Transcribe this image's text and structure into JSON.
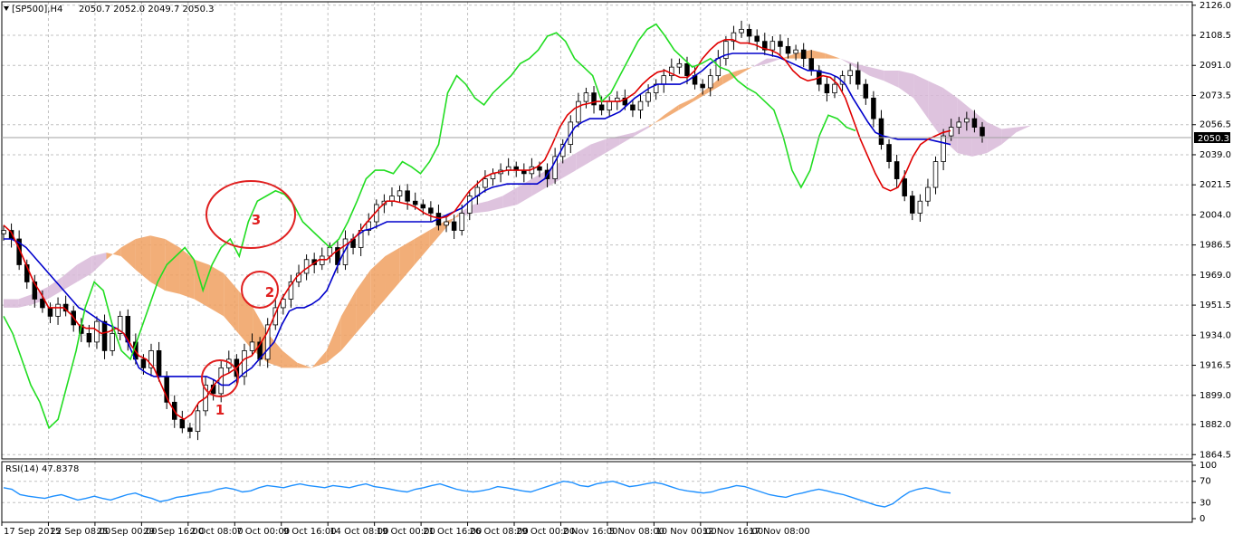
{
  "header": {
    "symbol": "[SP500],H4",
    "ohlc": "2050.7 2052.0 2049.7 2050.3"
  },
  "rsi": {
    "label": "RSI(14) 47.8378",
    "ticks": [
      100,
      70,
      30,
      0
    ],
    "color": "#1e90ff"
  },
  "current_price_label": "2050.3",
  "annotations": [
    {
      "text": "1",
      "color": "#e02020"
    },
    {
      "text": "2",
      "color": "#e02020"
    },
    {
      "text": "3",
      "color": "#e02020"
    }
  ],
  "colors": {
    "tenkan": "#e00000",
    "kijun": "#0000cc",
    "chikou": "#22dd22",
    "cloud_bull": "#f0a060",
    "cloud_bear": "#d8b8d8",
    "candle": "#000000"
  },
  "chart_data": {
    "type": "line",
    "instrument": "SP500",
    "timeframe": "H4",
    "y_ticks": [
      2126.0,
      2108.5,
      2091.0,
      2073.5,
      2056.5,
      2039.0,
      2021.5,
      2004.0,
      1986.5,
      1969.0,
      1951.5,
      1934.0,
      1916.5,
      1899.0,
      1882.0,
      1864.5
    ],
    "ylim": [
      1862,
      2128
    ],
    "x_ticks": [
      "17 Sep 2015",
      "22 Sep 08:00",
      "25 Sep 00:00",
      "29 Sep 16:00",
      "2 Oct 08:00",
      "7 Oct 00:00",
      "9 Oct 16:00",
      "14 Oct 08:00",
      "19 Oct 00:00",
      "21 Oct 16:00",
      "26 Oct 08:00",
      "29 Oct 00:00",
      "2 Nov 16:00",
      "5 Nov 08:00",
      "10 Nov 00:00",
      "12 Nov 16:00",
      "17 Nov 08:00"
    ],
    "grid": true,
    "close": [
      1995,
      1990,
      1975,
      1965,
      1955,
      1950,
      1945,
      1952,
      1948,
      1940,
      1935,
      1930,
      1942,
      1925,
      1935,
      1945,
      1930,
      1920,
      1915,
      1925,
      1910,
      1895,
      1885,
      1880,
      1878,
      1890,
      1905,
      1900,
      1915,
      1920,
      1910,
      1925,
      1930,
      1920,
      1940,
      1950,
      1955,
      1965,
      1970,
      1978,
      1975,
      1980,
      1985,
      1975,
      1990,
      1985,
      1995,
      2000,
      2010,
      2012,
      2015,
      2018,
      2012,
      2010,
      2008,
      2005,
      1998,
      2000,
      1995,
      2005,
      2015,
      2020,
      2025,
      2028,
      2030,
      2032,
      2030,
      2028,
      2032,
      2030,
      2025,
      2038,
      2045,
      2058,
      2070,
      2075,
      2068,
      2065,
      2070,
      2072,
      2068,
      2065,
      2070,
      2075,
      2080,
      2085,
      2090,
      2092,
      2085,
      2080,
      2078,
      2085,
      2095,
      2105,
      2110,
      2112,
      2108,
      2105,
      2100,
      2105,
      2102,
      2098,
      2100,
      2095,
      2088,
      2080,
      2075,
      2080,
      2085,
      2088,
      2080,
      2072,
      2060,
      2045,
      2035,
      2025,
      2015,
      2005,
      2012,
      2020,
      2035,
      2050,
      2055,
      2058,
      2060,
      2055,
      2050
    ],
    "series": [
      {
        "name": "",
        "color": "#e00000",
        "values": [
          1998,
          1994,
          1985,
          1975,
          1965,
          1958,
          1950,
          1950,
          1950,
          1946,
          1940,
          1938,
          1938,
          1935,
          1936,
          1938,
          1935,
          1928,
          1922,
          1920,
          1915,
          1905,
          1895,
          1888,
          1885,
          1888,
          1895,
          1898,
          1905,
          1910,
          1912,
          1915,
          1920,
          1922,
          1928,
          1935,
          1945,
          1955,
          1962,
          1968,
          1972,
          1975,
          1978,
          1978,
          1982,
          1985,
          1988,
          1992,
          1998,
          2003,
          2008,
          2012,
          2012,
          2011,
          2010,
          2008,
          2005,
          2003,
          2002,
          2003,
          2006,
          2012,
          2018,
          2022,
          2026,
          2028,
          2029,
          2030,
          2030,
          2030,
          2030,
          2032,
          2036,
          2045,
          2055,
          2062,
          2066,
          2068,
          2069,
          2070,
          2070,
          2070,
          2070,
          2072,
          2075,
          2080,
          2084,
          2087,
          2088,
          2086,
          2084,
          2084,
          2088,
          2095,
          2100,
          2104,
          2106,
          2106,
          2104,
          2104,
          2103,
          2101,
          2100,
          2098,
          2094,
          2088,
          2084,
          2082,
          2083,
          2085,
          2084,
          2080,
          2072,
          2060,
          2048,
          2038,
          2028,
          2020,
          2018,
          2020,
          2028,
          2038,
          2045,
          2048,
          2050,
          2052,
          2053
        ]
      },
      {
        "name": "",
        "color": "#0000cc",
        "values": [
          1990,
          1990,
          1988,
          1985,
          1980,
          1975,
          1970,
          1965,
          1960,
          1955,
          1950,
          1948,
          1945,
          1942,
          1940,
          1938,
          1935,
          1925,
          1915,
          1912,
          1910,
          1910,
          1910,
          1910,
          1910,
          1910,
          1910,
          1910,
          1908,
          1905,
          1905,
          1908,
          1912,
          1915,
          1920,
          1925,
          1930,
          1940,
          1948,
          1950,
          1950,
          1952,
          1955,
          1960,
          1970,
          1980,
          1988,
          1992,
          1995,
          1996,
          1998,
          2000,
          2000,
          2000,
          2000,
          2000,
          2000,
          2000,
          2002,
          2004,
          2006,
          2008,
          2012,
          2015,
          2018,
          2020,
          2021,
          2022,
          2022,
          2022,
          2022,
          2022,
          2025,
          2032,
          2040,
          2048,
          2055,
          2058,
          2060,
          2060,
          2060,
          2062,
          2064,
          2068,
          2072,
          2075,
          2078,
          2080,
          2080,
          2080,
          2080,
          2082,
          2085,
          2088,
          2092,
          2095,
          2097,
          2098,
          2098,
          2098,
          2098,
          2098,
          2097,
          2096,
          2094,
          2092,
          2090,
          2088,
          2088,
          2087,
          2086,
          2084,
          2080,
          2072,
          2065,
          2058,
          2052,
          2050,
          2049,
          2048,
          2048,
          2048,
          2048,
          2048,
          2047,
          2046,
          2045
        ]
      },
      {
        "name": "",
        "color": "#22dd22",
        "values": [
          1945,
          1935,
          1920,
          1905,
          1895,
          1880,
          1885,
          1905,
          1925,
          1950,
          1965,
          1960,
          1940,
          1925,
          1920,
          1935,
          1950,
          1965,
          1975,
          1980,
          1985,
          1978,
          1960,
          1975,
          1985,
          1990,
          1980,
          2000,
          2012,
          2015,
          2018,
          2016,
          2010,
          2000,
          1995,
          1990,
          1985,
          1990,
          2000,
          2012,
          2025,
          2030,
          2030,
          2028,
          2035,
          2032,
          2028,
          2035,
          2045,
          2075,
          2085,
          2080,
          2072,
          2068,
          2075,
          2080,
          2085,
          2092,
          2095,
          2100,
          2108,
          2110,
          2105,
          2095,
          2090,
          2085,
          2070,
          2075,
          2085,
          2095,
          2105,
          2112,
          2115,
          2108,
          2100,
          2095,
          2090,
          2092,
          2095,
          2090,
          2088,
          2082,
          2078,
          2075,
          2070,
          2065,
          2050,
          2030,
          2020,
          2030,
          2050,
          2062,
          2060,
          2055,
          2053
        ]
      },
      {
        "name": "",
        "color": "#1e90ff",
        "values": [
          58,
          55,
          45,
          42,
          40,
          38,
          42,
          45,
          40,
          35,
          38,
          42,
          38,
          35,
          40,
          45,
          48,
          42,
          38,
          32,
          35,
          40,
          42,
          45,
          48,
          50,
          55,
          58,
          55,
          50,
          52,
          58,
          62,
          60,
          58,
          62,
          65,
          62,
          60,
          58,
          62,
          60,
          58,
          62,
          65,
          60,
          58,
          55,
          52,
          50,
          55,
          58,
          62,
          65,
          60,
          55,
          52,
          50,
          52,
          55,
          60,
          58,
          55,
          52,
          50,
          55,
          60,
          65,
          70,
          68,
          62,
          60,
          65,
          68,
          70,
          65,
          60,
          62,
          65,
          68,
          65,
          60,
          55,
          52,
          50,
          48,
          50,
          55,
          58,
          62,
          60,
          55,
          50,
          45,
          42,
          40,
          45,
          48,
          52,
          55,
          52,
          48,
          45,
          40,
          35,
          30,
          25,
          22,
          28,
          40,
          50,
          55,
          58,
          55,
          50,
          48
        ]
      }
    ],
    "cloud": {
      "span_a": [
        1950,
        1950,
        1952,
        1955,
        1960,
        1965,
        1970,
        1978,
        1985,
        1990,
        1992,
        1990,
        1985,
        1978,
        1975,
        1970,
        1960,
        1950,
        1935,
        1925,
        1918,
        1915,
        1925,
        1945,
        1960,
        1972,
        1980,
        1985,
        1990,
        1995,
        2000,
        2003,
        2005,
        2006,
        2008,
        2010,
        2015,
        2020,
        2025,
        2030,
        2035,
        2040,
        2045,
        2050,
        2055,
        2062,
        2068,
        2072,
        2078,
        2085,
        2088,
        2090,
        2092,
        2095,
        2098,
        2100,
        2098,
        2095,
        2090,
        2085,
        2082,
        2078,
        2072,
        2060,
        2048,
        2040,
        2038,
        2040,
        2045,
        2052,
        2056,
        2056
      ],
      "span_b": [
        1955,
        1955,
        1958,
        1962,
        1968,
        1975,
        1980,
        1982,
        1980,
        1972,
        1965,
        1960,
        1958,
        1955,
        1950,
        1945,
        1935,
        1925,
        1918,
        1915,
        1915,
        1915,
        1918,
        1925,
        1935,
        1945,
        1955,
        1965,
        1975,
        1985,
        1995,
        2005,
        2010,
        2012,
        2015,
        2020,
        2025,
        2030,
        2035,
        2040,
        2045,
        2048,
        2050,
        2052,
        2056,
        2060,
        2065,
        2070,
        2075,
        2080,
        2085,
        2090,
        2095,
        2095,
        2095,
        2095,
        2095,
        2095,
        2092,
        2090,
        2088,
        2088,
        2086,
        2082,
        2078,
        2072,
        2065,
        2058,
        2054,
        2055,
        2056,
        2056
      ]
    }
  }
}
